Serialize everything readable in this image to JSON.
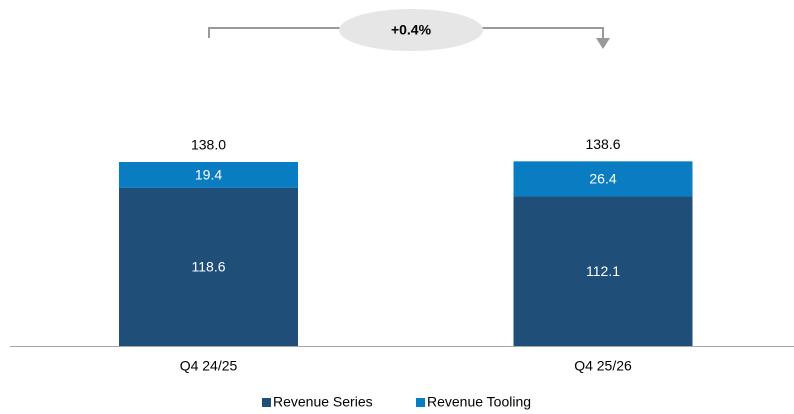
{
  "chart_data": {
    "type": "stacked_bar",
    "categories": [
      "Q4 24/25",
      "Q4 25/26"
    ],
    "series": [
      {
        "name": "Revenue Series",
        "color": "#1f4e79",
        "values": [
          118.6,
          112.1
        ]
      },
      {
        "name": "Revenue Tooling",
        "color": "#0a7cc1",
        "values": [
          19.4,
          26.4
        ]
      }
    ],
    "totals": [
      138.0,
      138.6
    ],
    "total_labels": [
      "138.0",
      "138.6"
    ],
    "annotation": "+0.4%"
  }
}
